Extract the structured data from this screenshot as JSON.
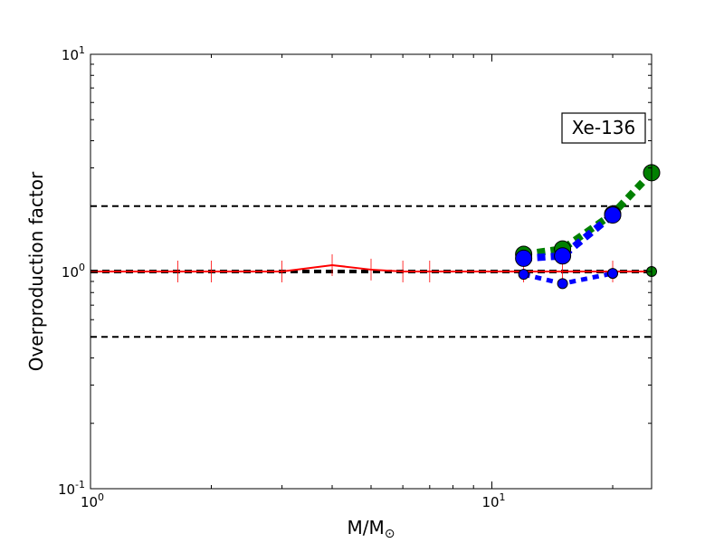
{
  "chart_data": {
    "type": "line",
    "xscale": "log",
    "yscale": "log",
    "xlim": [
      1,
      25
    ],
    "ylim": [
      0.1,
      10
    ],
    "grid": false,
    "xlabel_text": "M/M",
    "xlabel_subscript": "⊙",
    "ylabel": "Overproduction factor",
    "annotation": "Xe-136",
    "x_ticks": [
      {
        "value": 1,
        "base": "10",
        "exp": "0"
      },
      {
        "value": 10,
        "base": "10",
        "exp": "1"
      }
    ],
    "y_ticks": [
      {
        "value": 0.1,
        "base": "10",
        "exp": "-1"
      },
      {
        "value": 1,
        "base": "10",
        "exp": "0"
      },
      {
        "value": 10,
        "base": "10",
        "exp": "1"
      }
    ],
    "reference_lines": [
      {
        "y": 0.5,
        "style": "dashed",
        "color": "#000000",
        "width": 2
      },
      {
        "y": 1.0,
        "style": "dashed",
        "color": "#000000",
        "width": 4
      },
      {
        "y": 2.0,
        "style": "dashed",
        "color": "#000000",
        "width": 2
      }
    ],
    "series": [
      {
        "x": [
          1,
          1.65,
          2,
          3,
          4,
          5,
          6,
          7,
          12,
          15,
          20,
          25
        ],
        "y": [
          1.0,
          1.0,
          1.0,
          1.0,
          1.07,
          1.02,
          1.0,
          1.0,
          1.0,
          1.0,
          1.0,
          1.0
        ],
        "color": "#ff0000",
        "line": "solid",
        "marker": "plus",
        "errorbars": true
      },
      {
        "x": [
          12,
          15,
          20,
          25
        ],
        "y": [
          1.2,
          1.27,
          1.84,
          2.85
        ],
        "color": "#008000",
        "line": "dotted",
        "marker": "circle",
        "marker_size": "large"
      },
      {
        "x": [
          12,
          15,
          20
        ],
        "y": [
          1.15,
          1.18,
          1.82
        ],
        "color": "#0000ff",
        "line": "dotted",
        "marker": "circle",
        "marker_size": "large"
      },
      {
        "x": [
          25
        ],
        "y": [
          1.0
        ],
        "color": "#008000",
        "line": "dotted",
        "marker": "circle",
        "marker_size": "small"
      },
      {
        "x": [
          12,
          15,
          20
        ],
        "y": [
          0.97,
          0.88,
          0.98
        ],
        "color": "#0000ff",
        "line": "dotted",
        "marker": "circle",
        "marker_size": "small"
      }
    ]
  }
}
